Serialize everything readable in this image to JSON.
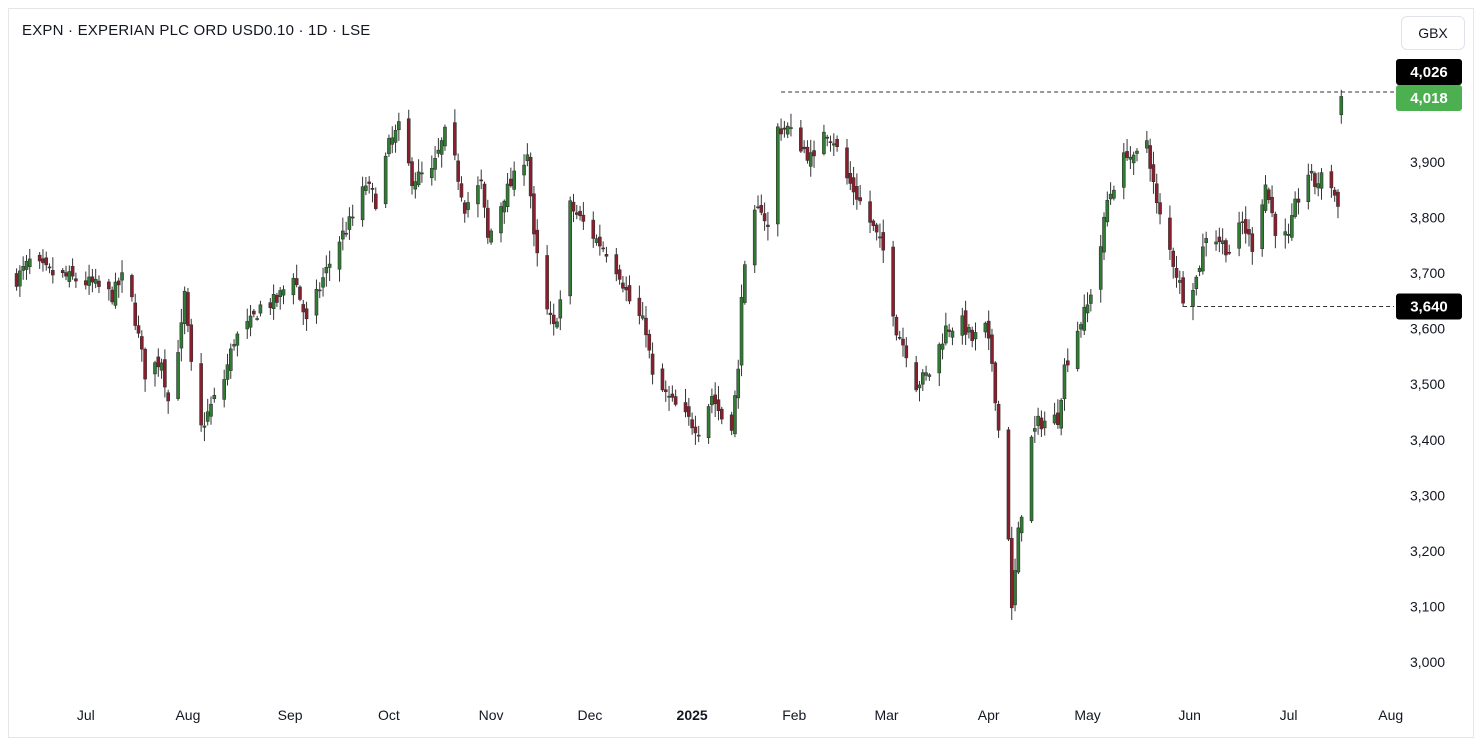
{
  "header": {
    "title": "EXPN · EXPERIAN PLC ORD USD0.10 · 1D · LSE",
    "currency_label": "GBX"
  },
  "colors": {
    "up": "#26a69a",
    "down": "#ef5350",
    "up_candle": "#2e7d32",
    "down_candle": "#8b1e2d",
    "last_price_badge": "#4caf50",
    "level_badge": "#000000",
    "text": "#131722"
  },
  "chart_data": {
    "type": "candlestick",
    "title": "EXPN · EXPERIAN PLC ORD USD0.10 · 1D · LSE",
    "ylabel": "GBX",
    "ylim": [
      2950,
      4080
    ],
    "yticks": [
      3000,
      3100,
      3200,
      3300,
      3400,
      3500,
      3600,
      3700,
      3800,
      3900
    ],
    "yticks_text": [
      "3,000",
      "3,100",
      "3,200",
      "3,300",
      "3,400",
      "3,500",
      "3,600",
      "3,700",
      "3,800",
      "3,900"
    ],
    "xticks": [
      {
        "label": "Jul",
        "date": "2024-07-01",
        "bold": false
      },
      {
        "label": "Aug",
        "date": "2024-08-01",
        "bold": false
      },
      {
        "label": "Sep",
        "date": "2024-09-01",
        "bold": false
      },
      {
        "label": "Oct",
        "date": "2024-10-01",
        "bold": false
      },
      {
        "label": "Nov",
        "date": "2024-11-01",
        "bold": false
      },
      {
        "label": "Dec",
        "date": "2024-12-01",
        "bold": false
      },
      {
        "label": "2025",
        "date": "2025-01-01",
        "bold": true
      },
      {
        "label": "Feb",
        "date": "2025-02-01",
        "bold": false
      },
      {
        "label": "Mar",
        "date": "2025-03-01",
        "bold": false
      },
      {
        "label": "Apr",
        "date": "2025-04-01",
        "bold": false
      },
      {
        "label": "May",
        "date": "2025-05-01",
        "bold": false
      },
      {
        "label": "Jun",
        "date": "2025-06-01",
        "bold": false
      },
      {
        "label": "Jul",
        "date": "2025-07-01",
        "bold": false
      },
      {
        "label": "Aug",
        "date": "2025-08-01",
        "bold": false
      }
    ],
    "x_range": [
      "2024-06-08",
      "2025-08-02"
    ],
    "grid": false,
    "price_labels": [
      {
        "value": 4026,
        "text": "4,026",
        "style": "black"
      },
      {
        "value": 4018,
        "text": "4,018",
        "style": "green"
      },
      {
        "value": 3640,
        "text": "3,640",
        "style": "black"
      }
    ],
    "levels": [
      {
        "value": 4026,
        "from": "2025-01-28"
      },
      {
        "value": 3640,
        "from": "2025-05-30"
      }
    ],
    "anchors": [
      [
        "2024-06-10",
        3690
      ],
      [
        "2024-06-14",
        3720
      ],
      [
        "2024-06-20",
        3700
      ],
      [
        "2024-06-27",
        3690
      ],
      [
        "2024-07-03",
        3680
      ],
      [
        "2024-07-09",
        3660
      ],
      [
        "2024-07-12",
        3690
      ],
      [
        "2024-07-15",
        3650
      ],
      [
        "2024-07-19",
        3520
      ],
      [
        "2024-07-24",
        3545
      ],
      [
        "2024-07-26",
        3470
      ],
      [
        "2024-07-30",
        3600
      ],
      [
        "2024-07-31",
        3660
      ],
      [
        "2024-08-02",
        3530
      ],
      [
        "2024-08-05",
        3420
      ],
      [
        "2024-08-08",
        3460
      ],
      [
        "2024-08-12",
        3510
      ],
      [
        "2024-08-15",
        3580
      ],
      [
        "2024-08-20",
        3610
      ],
      [
        "2024-08-23",
        3640
      ],
      [
        "2024-08-28",
        3650
      ],
      [
        "2024-09-02",
        3700
      ],
      [
        "2024-09-06",
        3610
      ],
      [
        "2024-09-11",
        3690
      ],
      [
        "2024-09-16",
        3760
      ],
      [
        "2024-09-20",
        3800
      ],
      [
        "2024-09-24",
        3860
      ],
      [
        "2024-09-27",
        3830
      ],
      [
        "2024-10-01",
        3930
      ],
      [
        "2024-10-04",
        3960
      ],
      [
        "2024-10-08",
        3870
      ],
      [
        "2024-10-14",
        3880
      ],
      [
        "2024-10-18",
        3950
      ],
      [
        "2024-10-21",
        3900
      ],
      [
        "2024-10-24",
        3820
      ],
      [
        "2024-10-29",
        3860
      ],
      [
        "2024-10-31",
        3760
      ],
      [
        "2024-11-05",
        3840
      ],
      [
        "2024-11-08",
        3870
      ],
      [
        "2024-11-12",
        3920
      ],
      [
        "2024-11-14",
        3760
      ],
      [
        "2024-11-18",
        3630
      ],
      [
        "2024-11-20",
        3600
      ],
      [
        "2024-11-22",
        3650
      ],
      [
        "2024-11-25",
        3820
      ],
      [
        "2024-11-29",
        3790
      ],
      [
        "2024-12-03",
        3760
      ],
      [
        "2024-12-06",
        3740
      ],
      [
        "2024-12-10",
        3700
      ],
      [
        "2024-12-13",
        3650
      ],
      [
        "2024-12-18",
        3600
      ],
      [
        "2024-12-20",
        3510
      ],
      [
        "2024-12-24",
        3480
      ],
      [
        "2024-12-30",
        3440
      ],
      [
        "2025-01-03",
        3420
      ],
      [
        "2025-01-07",
        3480
      ],
      [
        "2025-01-10",
        3440
      ],
      [
        "2025-01-13",
        3430
      ],
      [
        "2025-01-15",
        3520
      ],
      [
        "2025-01-16",
        3670
      ],
      [
        "2025-01-20",
        3800
      ],
      [
        "2025-01-22",
        3820
      ],
      [
        "2025-01-24",
        3780
      ],
      [
        "2025-01-27",
        3960
      ],
      [
        "2025-01-30",
        3960
      ],
      [
        "2025-02-03",
        3930
      ],
      [
        "2025-02-07",
        3900
      ],
      [
        "2025-02-10",
        3960
      ],
      [
        "2025-02-13",
        3940
      ],
      [
        "2025-02-17",
        3870
      ],
      [
        "2025-02-20",
        3840
      ],
      [
        "2025-02-25",
        3780
      ],
      [
        "2025-02-28",
        3740
      ],
      [
        "2025-03-04",
        3600
      ],
      [
        "2025-03-07",
        3560
      ],
      [
        "2025-03-10",
        3500
      ],
      [
        "2025-03-14",
        3520
      ],
      [
        "2025-03-19",
        3600
      ],
      [
        "2025-03-24",
        3610
      ],
      [
        "2025-03-27",
        3580
      ],
      [
        "2025-03-31",
        3600
      ],
      [
        "2025-04-02",
        3540
      ],
      [
        "2025-04-03",
        3480
      ],
      [
        "2025-04-07",
        3230
      ],
      [
        "2025-04-08",
        3090
      ],
      [
        "2025-04-10",
        3230
      ],
      [
        "2025-04-14",
        3400
      ],
      [
        "2025-04-16",
        3430
      ],
      [
        "2025-04-22",
        3440
      ],
      [
        "2025-04-24",
        3530
      ],
      [
        "2025-04-28",
        3600
      ],
      [
        "2025-05-01",
        3640
      ],
      [
        "2025-05-05",
        3750
      ],
      [
        "2025-05-07",
        3830
      ],
      [
        "2025-05-09",
        3860
      ],
      [
        "2025-05-13",
        3920
      ],
      [
        "2025-05-15",
        3900
      ],
      [
        "2025-05-19",
        3940
      ],
      [
        "2025-05-22",
        3820
      ],
      [
        "2025-05-27",
        3720
      ],
      [
        "2025-05-30",
        3660
      ],
      [
        "2025-06-03",
        3690
      ],
      [
        "2025-06-06",
        3770
      ],
      [
        "2025-06-10",
        3760
      ],
      [
        "2025-06-13",
        3740
      ],
      [
        "2025-06-17",
        3790
      ],
      [
        "2025-06-20",
        3750
      ],
      [
        "2025-06-24",
        3860
      ],
      [
        "2025-06-27",
        3780
      ],
      [
        "2025-07-01",
        3760
      ],
      [
        "2025-07-03",
        3820
      ],
      [
        "2025-07-07",
        3880
      ],
      [
        "2025-07-09",
        3860
      ],
      [
        "2025-07-11",
        3870
      ],
      [
        "2025-07-14",
        3860
      ],
      [
        "2025-07-16",
        3820
      ],
      [
        "2025-07-17",
        4018
      ]
    ]
  }
}
